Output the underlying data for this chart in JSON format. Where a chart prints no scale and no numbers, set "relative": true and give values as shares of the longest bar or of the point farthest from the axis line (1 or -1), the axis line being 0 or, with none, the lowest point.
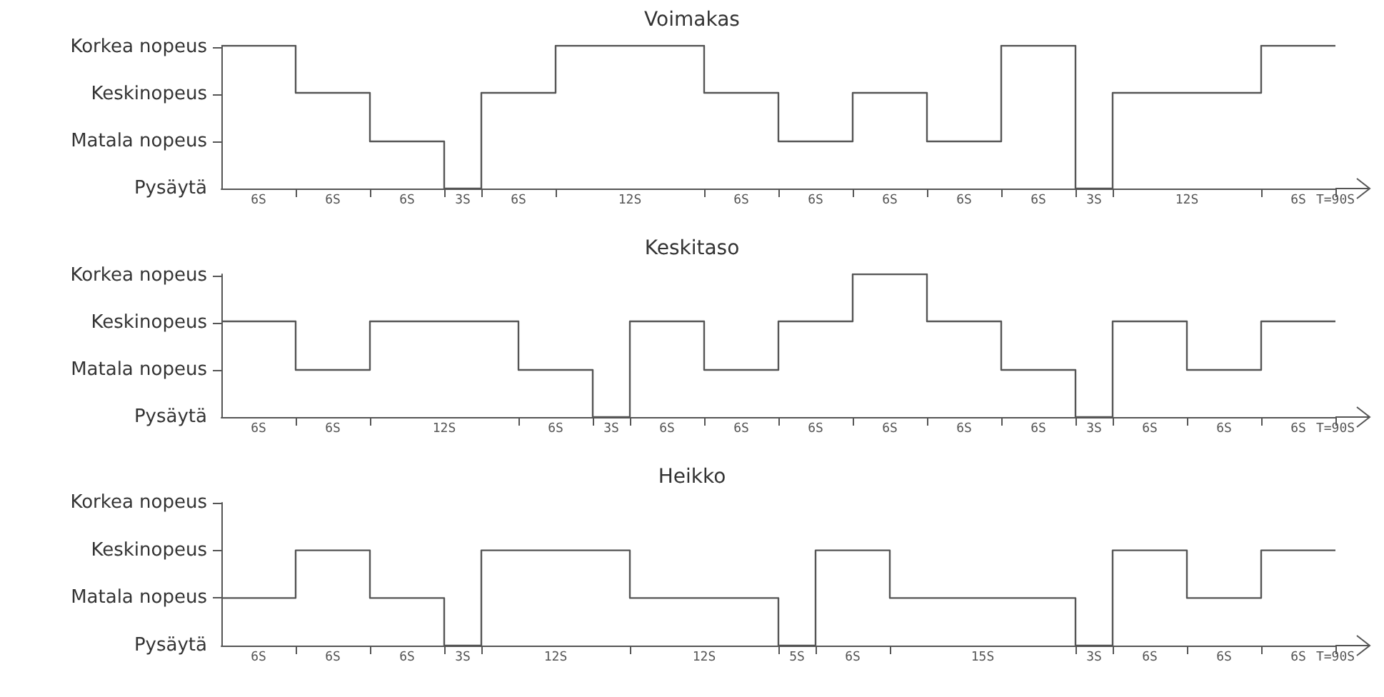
{
  "chart_data": [
    {
      "type": "step",
      "title": "Voimakas",
      "relative": true,
      "annotations": [
        "Korkea nopeus",
        "Keskinopeus",
        "Matala nopeus",
        "Pysäytä"
      ],
      "categories": [
        null,
        null,
        "6S",
        null,
        null,
        null,
        "6S",
        null,
        null,
        null,
        "6S",
        null,
        null,
        "3S",
        null,
        null,
        "6S",
        null,
        null,
        null,
        null,
        null,
        "12S",
        null,
        null,
        null,
        null,
        null,
        "6S",
        null,
        null,
        null,
        "6S",
        null,
        null,
        null,
        "6S",
        null,
        null,
        null,
        "6S",
        null,
        null,
        null,
        "6S",
        null,
        null,
        "3S",
        null,
        null,
        null,
        null,
        "12S",
        null,
        null,
        null,
        null,
        null,
        "6S",
        null,
        "T=90S"
      ],
      "series": [
        {
          "color": "#555555",
          "values": [
            1,
            1,
            1,
            1,
            0.67,
            0.67,
            0.67,
            0.67,
            0.33,
            0.33,
            0.33,
            0.33,
            0,
            0,
            0.67,
            0.67,
            0.67,
            0.67,
            1,
            1,
            1,
            1,
            1,
            1,
            1,
            1,
            0.67,
            0.67,
            0.67,
            0.67,
            0.33,
            0.33,
            0.33,
            0.33,
            0.67,
            0.67,
            0.67,
            0.67,
            0.33,
            0.33,
            0.33,
            0.33,
            1,
            1,
            1,
            1,
            0,
            0,
            0.67,
            0.67,
            0.67,
            0.67,
            0.67,
            0.67,
            0.67,
            0.67,
            1,
            1,
            1,
            1,
            1
          ]
        }
      ],
      "grid": false,
      "marker": "none"
    },
    {
      "type": "step",
      "title": "Keskitaso",
      "relative": true,
      "annotations": [
        "Korkea nopeus",
        "Keskinopeus",
        "Matala nopeus",
        "Pysäytä"
      ],
      "categories": [
        null,
        null,
        "6S",
        null,
        null,
        null,
        "6S",
        null,
        null,
        null,
        null,
        null,
        "12S",
        null,
        null,
        null,
        null,
        null,
        "6S",
        null,
        null,
        "3S",
        null,
        null,
        "6S",
        null,
        null,
        null,
        "6S",
        null,
        null,
        null,
        "6S",
        null,
        null,
        null,
        "6S",
        null,
        null,
        null,
        "6S",
        null,
        null,
        null,
        "6S",
        null,
        null,
        "3S",
        null,
        null,
        "6S",
        null,
        null,
        null,
        "6S",
        null,
        null,
        null,
        "6S",
        null,
        "T=90S"
      ],
      "series": [
        {
          "color": "#555555",
          "values": [
            0.67,
            0.67,
            0.67,
            0.67,
            0.33,
            0.33,
            0.33,
            0.33,
            0.67,
            0.67,
            0.67,
            0.67,
            0.67,
            0.67,
            0.67,
            0.67,
            0.33,
            0.33,
            0.33,
            0.33,
            0,
            0,
            0.67,
            0.67,
            0.67,
            0.67,
            0.33,
            0.33,
            0.33,
            0.33,
            0.67,
            0.67,
            0.67,
            0.67,
            1,
            1,
            1,
            1,
            0.67,
            0.67,
            0.67,
            0.67,
            0.33,
            0.33,
            0.33,
            0.33,
            0,
            0,
            0.67,
            0.67,
            0.67,
            0.67,
            0.33,
            0.33,
            0.33,
            0.33,
            0.67,
            0.67,
            0.67,
            0.67,
            0.67
          ]
        }
      ],
      "grid": false,
      "marker": "none"
    },
    {
      "type": "step",
      "title": "Heikko",
      "relative": true,
      "annotations": [
        "Korkea nopeus",
        "Keskinopeus",
        "Matala nopeus",
        "Pysäytä"
      ],
      "categories": [
        null,
        null,
        "6S",
        null,
        null,
        null,
        "6S",
        null,
        null,
        null,
        "6S",
        null,
        null,
        "3S",
        null,
        null,
        null,
        null,
        "12S",
        null,
        null,
        null,
        null,
        null,
        null,
        null,
        "12S",
        null,
        null,
        null,
        null,
        "5S",
        null,
        null,
        "6S",
        null,
        null,
        null,
        null,
        null,
        null,
        "15S",
        null,
        null,
        null,
        null,
        null,
        "3S",
        null,
        null,
        "6S",
        null,
        null,
        null,
        "6S",
        null,
        null,
        null,
        "6S",
        null,
        "T=90S"
      ],
      "series": [
        {
          "color": "#555555",
          "values": [
            0.5,
            0.5,
            0.5,
            0.5,
            1,
            1,
            1,
            1,
            0.5,
            0.5,
            0.5,
            0.5,
            0,
            0,
            1,
            1,
            1,
            1,
            1,
            1,
            1,
            1,
            0.5,
            0.5,
            0.5,
            0.5,
            0.5,
            0.5,
            0.5,
            0.5,
            0,
            0,
            1,
            1,
            1,
            1,
            0.5,
            0.5,
            0.5,
            0.5,
            0.5,
            0.5,
            0.5,
            0.5,
            0.5,
            0.5,
            0,
            0,
            1,
            1,
            1,
            1,
            0.5,
            0.5,
            0.5,
            0.5,
            1,
            1,
            1,
            1,
            1
          ]
        }
      ],
      "grid": false,
      "marker": "none"
    }
  ]
}
